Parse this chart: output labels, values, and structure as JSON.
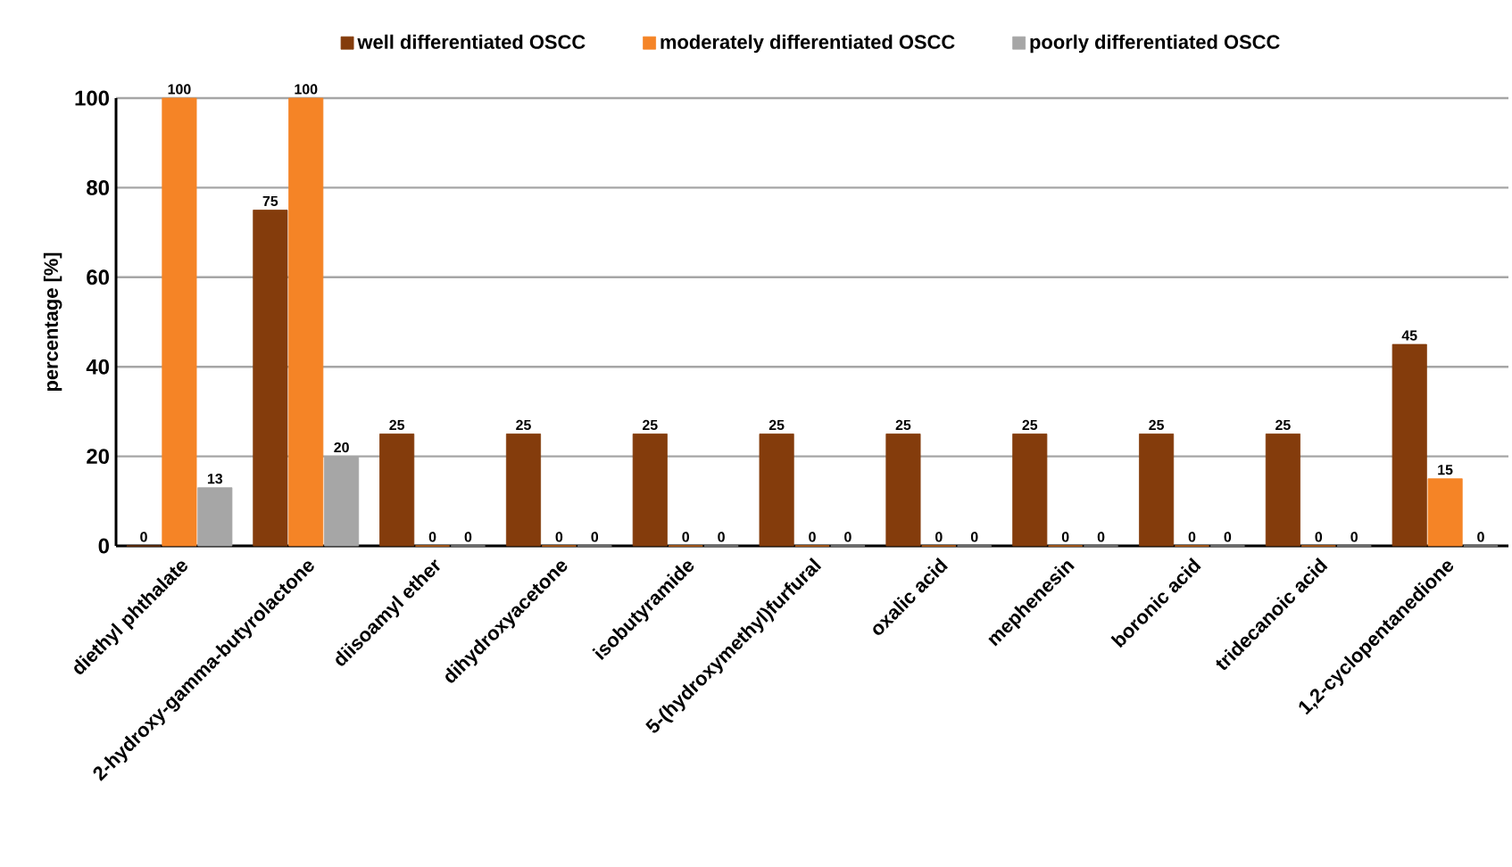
{
  "chart_data": {
    "type": "bar",
    "ylabel": "percentage [%]",
    "categories": [
      "diethyl phthalate",
      "2-hydroxy-gamma-butyrolactone",
      "diisoamyl ether",
      "dihydroxyacetone",
      "isobutyramide",
      "5-(hydroxymethyl)furfural",
      "oxalic acid",
      "mephenesin",
      "boronic acid",
      "tridecanoic acid",
      "1,2-cyclopentanedione"
    ],
    "series": [
      {
        "name": "well differentiated OSCC",
        "color": "#843c0c",
        "values": [
          0,
          75,
          25,
          25,
          25,
          25,
          25,
          25,
          25,
          25,
          45
        ]
      },
      {
        "name": "moderately differentiated OSCC",
        "color": "#f58426",
        "values": [
          100,
          100,
          0,
          0,
          0,
          0,
          0,
          0,
          0,
          0,
          15
        ]
      },
      {
        "name": "poorly differentiated OSCC",
        "color": "#a6a6a6",
        "values": [
          13,
          20,
          0,
          0,
          0,
          0,
          0,
          0,
          0,
          0,
          0
        ]
      }
    ],
    "ylim": [
      0,
      100
    ],
    "yticks": [
      0,
      20,
      40,
      60,
      80,
      100
    ],
    "grid": "y",
    "legend": "top",
    "data_labels": true
  }
}
